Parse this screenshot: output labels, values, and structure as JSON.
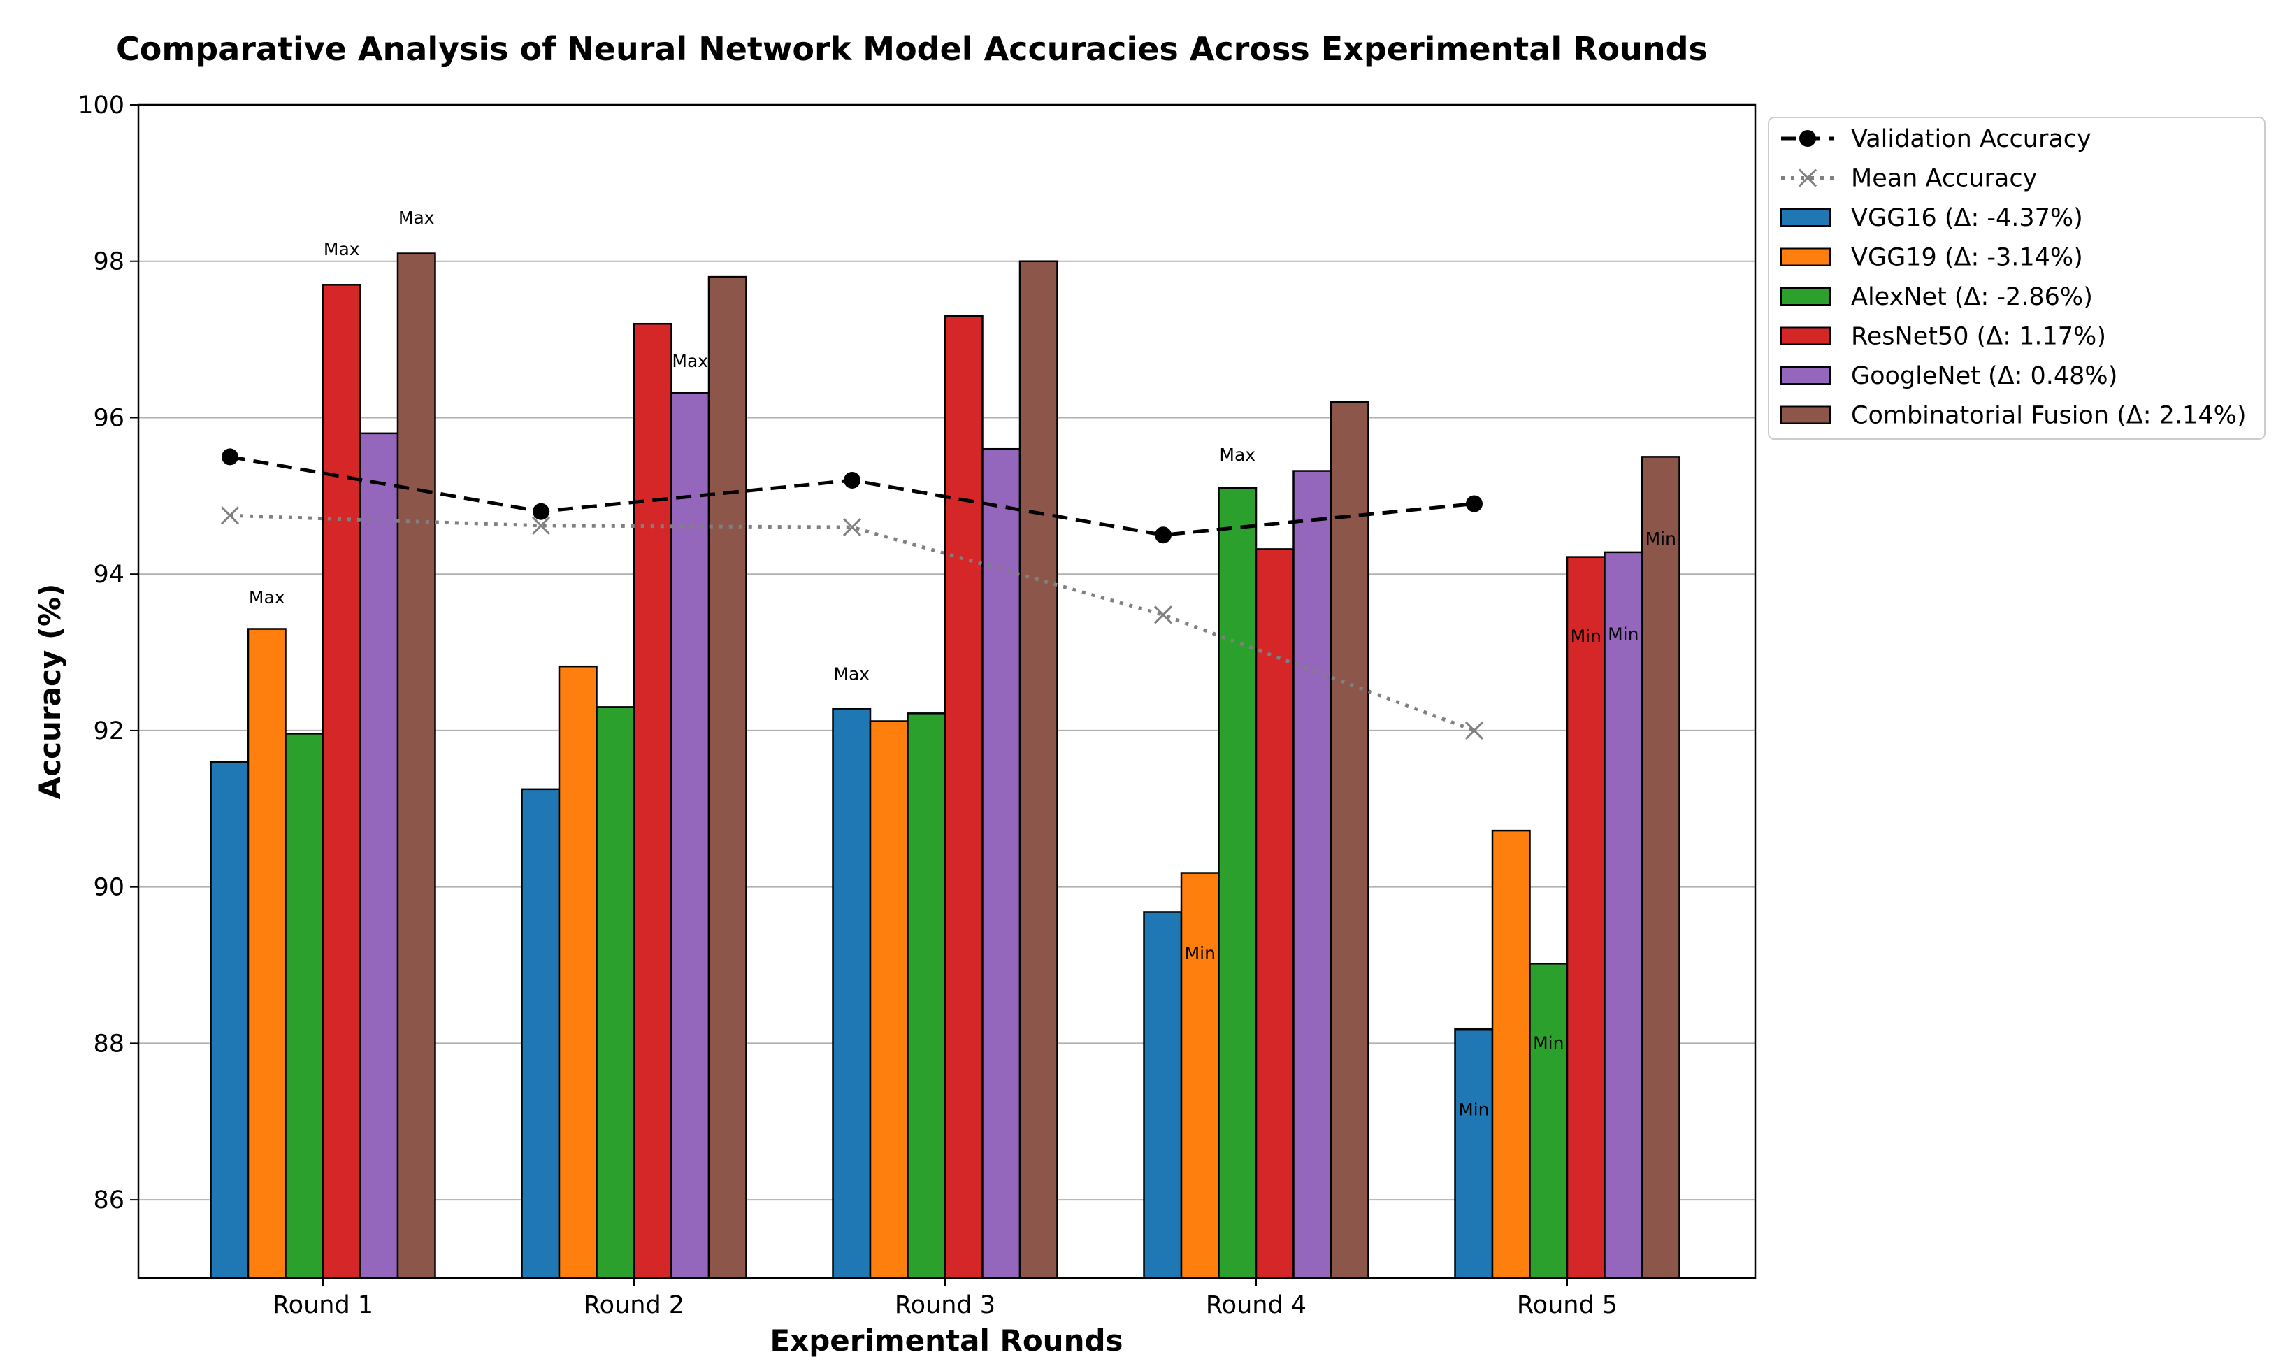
{
  "chart_data": {
    "type": "bar",
    "title": "Comparative Analysis of Neural Network Model Accuracies Across Experimental Rounds",
    "xlabel": "Experimental Rounds",
    "ylabel": "Accuracy (%)",
    "ylim": [
      85,
      100
    ],
    "yticks": [
      86,
      88,
      90,
      92,
      94,
      96,
      98,
      100
    ],
    "grid": "horizontal",
    "legend_position": "outside-right",
    "categories": [
      "Round 1",
      "Round 2",
      "Round 3",
      "Round 4",
      "Round 5"
    ],
    "series": [
      {
        "name": "VGG16 (Δ: -4.37%)",
        "color": "#1f77b4",
        "values": [
          91.6,
          91.25,
          92.28,
          89.68,
          88.18
        ]
      },
      {
        "name": "VGG19 (Δ: -3.14%)",
        "color": "#ff7f0e",
        "values": [
          93.3,
          92.82,
          92.12,
          90.18,
          90.72
        ]
      },
      {
        "name": "AlexNet (Δ: -2.86%)",
        "color": "#2ca02c",
        "values": [
          91.96,
          92.3,
          92.22,
          95.1,
          89.02
        ]
      },
      {
        "name": "ResNet50 (Δ: 1.17%)",
        "color": "#d62728",
        "values": [
          97.7,
          97.2,
          97.3,
          94.32,
          94.22
        ]
      },
      {
        "name": "GoogleNet (Δ: 0.48%)",
        "color": "#9467bd",
        "values": [
          95.8,
          96.32,
          95.6,
          95.32,
          94.28
        ]
      },
      {
        "name": "Combinatorial Fusion (Δ: 2.14%)",
        "color": "#8c564b",
        "values": [
          98.1,
          97.8,
          98.0,
          96.2,
          95.5
        ]
      }
    ],
    "lines": [
      {
        "name": "Validation Accuracy",
        "color": "#000000",
        "style": "dashed",
        "marker": "circle",
        "values": [
          95.5,
          94.8,
          95.2,
          94.5,
          94.9
        ]
      },
      {
        "name": "Mean Accuracy",
        "color": "#808080",
        "style": "dotted",
        "marker": "x",
        "values": [
          94.75,
          94.62,
          94.6,
          93.48,
          92.0
        ]
      }
    ],
    "annotations": [
      {
        "text": "Max",
        "category": 0,
        "series": 1,
        "y": 93.7
      },
      {
        "text": "Max",
        "category": 0,
        "series": 3,
        "y": 98.15
      },
      {
        "text": "Max",
        "category": 0,
        "series": 5,
        "y": 98.55
      },
      {
        "text": "Max",
        "category": 1,
        "series": 4,
        "y": 96.72
      },
      {
        "text": "Max",
        "category": 2,
        "series": 0,
        "y": 92.72
      },
      {
        "text": "Max",
        "category": 3,
        "series": 2,
        "y": 95.52
      },
      {
        "text": "Min",
        "category": 3,
        "series": 1,
        "y": 89.15
      },
      {
        "text": "Min",
        "category": 4,
        "series": 0,
        "y": 87.15
      },
      {
        "text": "Min",
        "category": 4,
        "series": 2,
        "y": 88.0
      },
      {
        "text": "Min",
        "category": 4,
        "series": 3,
        "y": 93.2
      },
      {
        "text": "Min",
        "category": 4,
        "series": 4,
        "y": 93.23
      },
      {
        "text": "Min",
        "category": 4,
        "series": 5,
        "y": 94.45
      }
    ]
  }
}
